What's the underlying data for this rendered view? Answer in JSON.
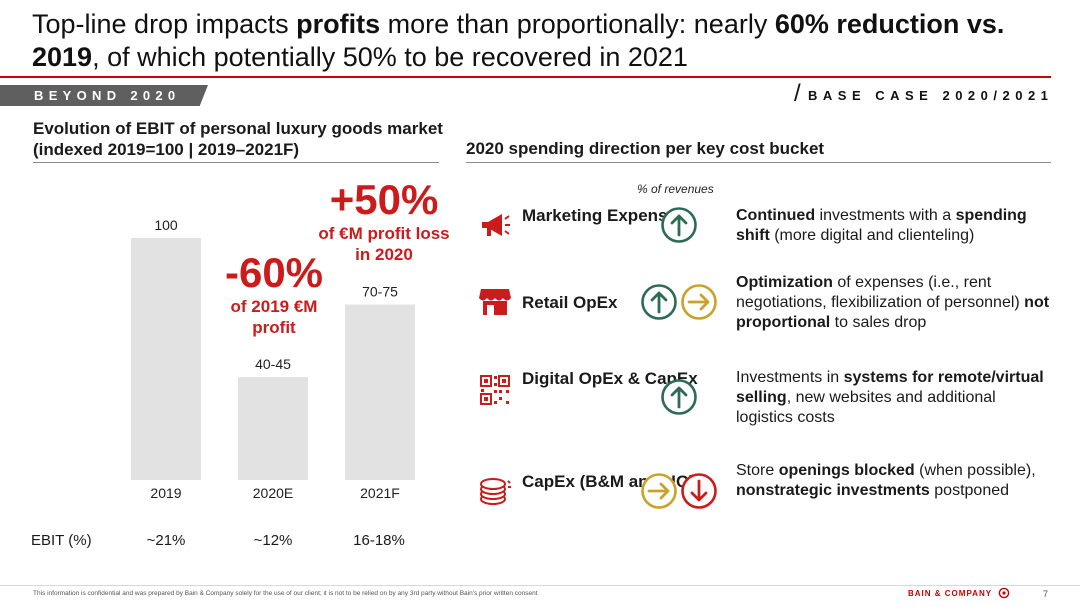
{
  "title": {
    "parts": [
      {
        "text": "Top-line drop impacts ",
        "bold": false
      },
      {
        "text": "profits",
        "bold": true
      },
      {
        "text": " more than proportionally: nearly ",
        "bold": false
      },
      {
        "text": "60% reduction vs. 2019",
        "bold": true
      },
      {
        "text": ", of which potentially 50% to be recovered in 2021",
        "bold": false
      }
    ]
  },
  "section_band": "BEYOND 2020",
  "scenario_label": "BASE CASE 2020/2021",
  "scenario_slash": "/",
  "chart_title": "Evolution of EBIT of personal luxury goods market (indexed 2019=100 | 2019–2021F)",
  "chart_data": {
    "type": "bar",
    "categories": [
      "2019",
      "2020E",
      "2021F"
    ],
    "values": [
      100,
      42.5,
      72.5
    ],
    "value_labels": [
      "100",
      "40-45",
      "70-75"
    ],
    "ylim": [
      0,
      100
    ],
    "bar_color": "#e2e2e2"
  },
  "callout_drop": {
    "big": "-60%",
    "small": "of 2019 €M profit"
  },
  "callout_recover": {
    "big": "+50%",
    "small": "of €M profit loss in 2020"
  },
  "ebit": {
    "label": "EBIT (%)",
    "values": [
      "~21%",
      "~12%",
      "16-18%"
    ]
  },
  "right_title": "2020 spending direction per key cost bucket",
  "pct_revenues_label": "% of revenues",
  "colors": {
    "accent": "#cc0000",
    "arrow_up": "#2e6b55",
    "arrow_right": "#c9a227",
    "arrow_down": "#cc1b1b"
  },
  "rows": [
    {
      "icon": "megaphone-icon",
      "label": "Marketing Expenses",
      "arrows": [
        "up"
      ],
      "desc": [
        {
          "text": "Continued",
          "bold": true
        },
        {
          "text": " investments with a ",
          "bold": false
        },
        {
          "text": "spending shift",
          "bold": true
        },
        {
          "text": " (more digital and clienteling)",
          "bold": false
        }
      ]
    },
    {
      "icon": "store-icon",
      "label": "Retail OpEx",
      "arrows": [
        "up",
        "right"
      ],
      "desc": [
        {
          "text": "Optimization",
          "bold": true
        },
        {
          "text": " of expenses (i.e., rent negotiations, flexibilization of personnel) ",
          "bold": false
        },
        {
          "text": "not proportional",
          "bold": true
        },
        {
          "text": " to sales drop",
          "bold": false
        }
      ]
    },
    {
      "icon": "qr-code-icon",
      "label": "Digital OpEx & CapEx",
      "arrows": [
        "up"
      ],
      "desc": [
        {
          "text": "Investments in ",
          "bold": false
        },
        {
          "text": "systems for remote/virtual selling",
          "bold": true
        },
        {
          "text": ", new websites and additional logistics costs",
          "bold": false
        }
      ]
    },
    {
      "icon": "coins-icon",
      "label": "CapEx (B&M and HQ)",
      "arrows": [
        "right",
        "down"
      ],
      "desc": [
        {
          "text": "Store ",
          "bold": false
        },
        {
          "text": "openings blocked",
          "bold": true
        },
        {
          "text": " (when possible), ",
          "bold": false
        },
        {
          "text": "nonstrategic investments",
          "bold": true
        },
        {
          "text": " postponed",
          "bold": false
        }
      ]
    }
  ],
  "footer": {
    "disclaimer": "This information is confidential and was prepared by Bain & Company solely for the use of our client; it is not to be relied on by any 3rd party without Bain's prior written consent",
    "brand": "BAIN & COMPANY",
    "page": "7"
  }
}
